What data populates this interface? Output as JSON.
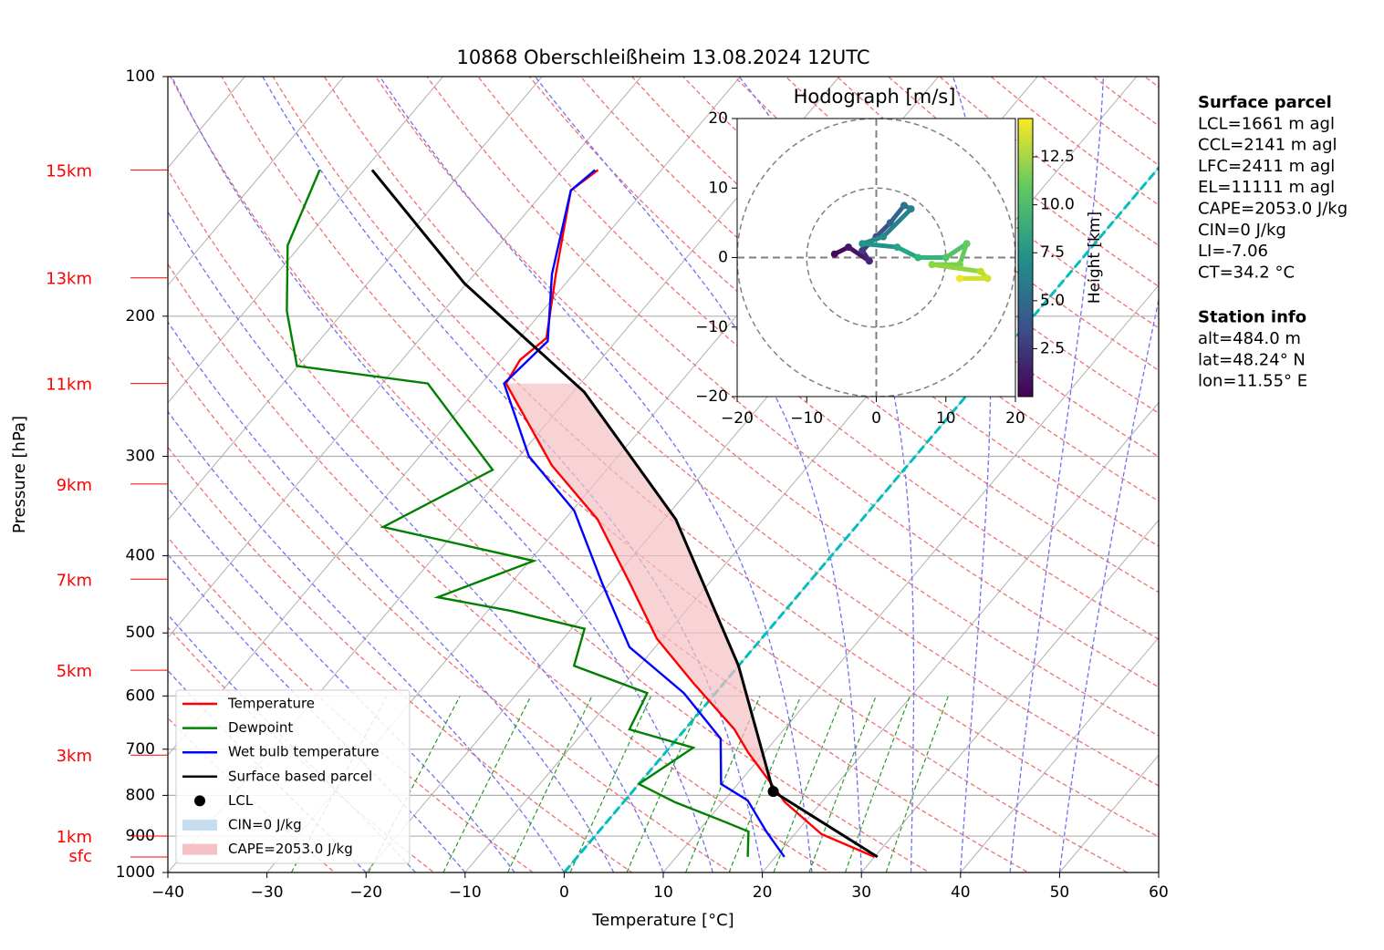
{
  "chart_data": [
    {
      "type": "skewt",
      "title": "10868 Oberschleißheim 13.08.2024 12UTC",
      "xlabel": "Temperature [°C]",
      "ylabel": "Pressure [hPa]",
      "xlim": [
        -40,
        60
      ],
      "ylim": [
        1000,
        100
      ],
      "log_scale": true,
      "grid": true,
      "legend": "lower left",
      "xticks": [
        {
          "value": -40,
          "label": "−40"
        },
        {
          "value": -30,
          "label": "−30"
        },
        {
          "value": -20,
          "label": "−20"
        },
        {
          "value": -10,
          "label": "−10"
        },
        0,
        10,
        20,
        30,
        40,
        50,
        60
      ],
      "yticks": [
        100,
        200,
        300,
        400,
        500,
        600,
        700,
        800,
        900,
        1000
      ],
      "series": [
        {
          "name": "Temperature",
          "color": "#ff0000",
          "p": [
            956,
            895,
            816,
            706,
            661,
            579,
            508,
            433,
            360,
            308,
            243,
            227,
            213,
            177,
            139,
            131
          ],
          "t": [
            30.0,
            22.7,
            16.3,
            8.3,
            5.0,
            -3.0,
            -10.6,
            -18.0,
            -26.7,
            -35.9,
            -47.5,
            -48.1,
            -47.3,
            -51.8,
            -57.4,
            -56.4
          ]
        },
        {
          "name": "Dewpoint",
          "color": "#008000",
          "p": [
            956,
            888,
            860,
            816,
            774,
            697,
            661,
            595,
            550,
            494,
            469,
            451,
            406,
            368,
            312,
            243,
            231,
            197,
            163,
            131
          ],
          "t": [
            17.2,
            15.1,
            11.4,
            5.2,
            0.0,
            2.4,
            -5.6,
            -6.9,
            -16.6,
            -18.7,
            -27.7,
            -36.2,
            -29.6,
            -47.7,
            -41.5,
            -55.4,
            -70.1,
            -75.8,
            -81.3,
            -84.5
          ]
        },
        {
          "name": "Wet bulb temperature",
          "color": "#0000ff",
          "p": [
            956,
            888,
            812,
            774,
            679,
            595,
            521,
            433,
            351,
            300,
            243,
            215,
            177,
            139,
            131
          ],
          "t": [
            20.9,
            16.9,
            12.4,
            8.3,
            4.4,
            -3.2,
            -12.6,
            -20.8,
            -29.8,
            -39.0,
            -47.7,
            -46.9,
            -52.2,
            -57.4,
            -56.7
          ]
        },
        {
          "name": "Surface based parcel",
          "color": "#000000",
          "p": [
            956,
            791,
            550,
            360,
            249,
            182,
            131
          ],
          "t": [
            30.3,
            14.2,
            0.0,
            -18.8,
            -38.9,
            -60.2,
            -79.2
          ]
        }
      ],
      "lcl": {
        "name": "LCL",
        "p": 791,
        "t": 14.2
      },
      "cin": {
        "name": "CIN=0 J/kg",
        "color": "#c6dcef"
      },
      "cape": {
        "name": "CAPE=2053.0 J/kg",
        "color": "#f4c0c4"
      },
      "height_labels": [
        {
          "label": "15km",
          "p": 131
        },
        {
          "label": "13km",
          "p": 179
        },
        {
          "label": "11km",
          "p": 243
        },
        {
          "label": "9km",
          "p": 325
        },
        {
          "label": "7km",
          "p": 428
        },
        {
          "label": "5km",
          "p": 557
        },
        {
          "label": "3km",
          "p": 712
        },
        {
          "label": "1km",
          "p": 900
        },
        {
          "label": "sfc",
          "p": 956
        }
      ]
    },
    {
      "type": "hodograph",
      "title": "Hodograph [m/s]",
      "xlim": [
        -20,
        20
      ],
      "ylim": [
        -20,
        20
      ],
      "xticks": [
        {
          "value": -20,
          "label": "−20"
        },
        {
          "value": -10,
          "label": "−10"
        },
        0,
        10,
        20
      ],
      "yticks": [
        {
          "value": -20,
          "label": "−20"
        },
        {
          "value": -10,
          "label": "−10"
        },
        0,
        10,
        20
      ],
      "u": [
        -6,
        -4,
        -1,
        -2,
        0,
        2,
        4,
        5,
        1,
        -2,
        3,
        6,
        10,
        13,
        12,
        8,
        15,
        16,
        12
      ],
      "v": [
        0.5,
        1.5,
        -0.5,
        1,
        3,
        5,
        7.5,
        7,
        3,
        2,
        1.5,
        0,
        0,
        2,
        -1,
        -1,
        -2,
        -3,
        -3
      ],
      "height": [
        0.3,
        0.8,
        1.5,
        2.5,
        3.5,
        4.5,
        5.5,
        6.5,
        7,
        7.5,
        8.5,
        9.5,
        10.5,
        11,
        11.5,
        12,
        13,
        13.5,
        14.2
      ],
      "colorbar": {
        "label": "Height [km]",
        "lim": [
          0,
          14.5
        ],
        "ticks": [
          2.5,
          {
            "value": 5,
            "label": "5.0"
          },
          7.5,
          {
            "value": 10,
            "label": "10.0"
          },
          12.5
        ]
      }
    }
  ],
  "panels": [
    {
      "title": "Surface parcel",
      "lines": [
        "LCL=1661 m agl",
        "CCL=2141 m agl",
        "LFC=2411 m agl",
        "EL=11111 m agl",
        "CAPE=2053.0 J/kg",
        "CIN=0 J/kg",
        "LI=-7.06",
        "CT=34.2 °C"
      ]
    },
    {
      "title": "Station info",
      "lines": [
        "alt=484.0 m",
        "lat=48.24° N",
        "lon=11.55° E"
      ]
    }
  ]
}
